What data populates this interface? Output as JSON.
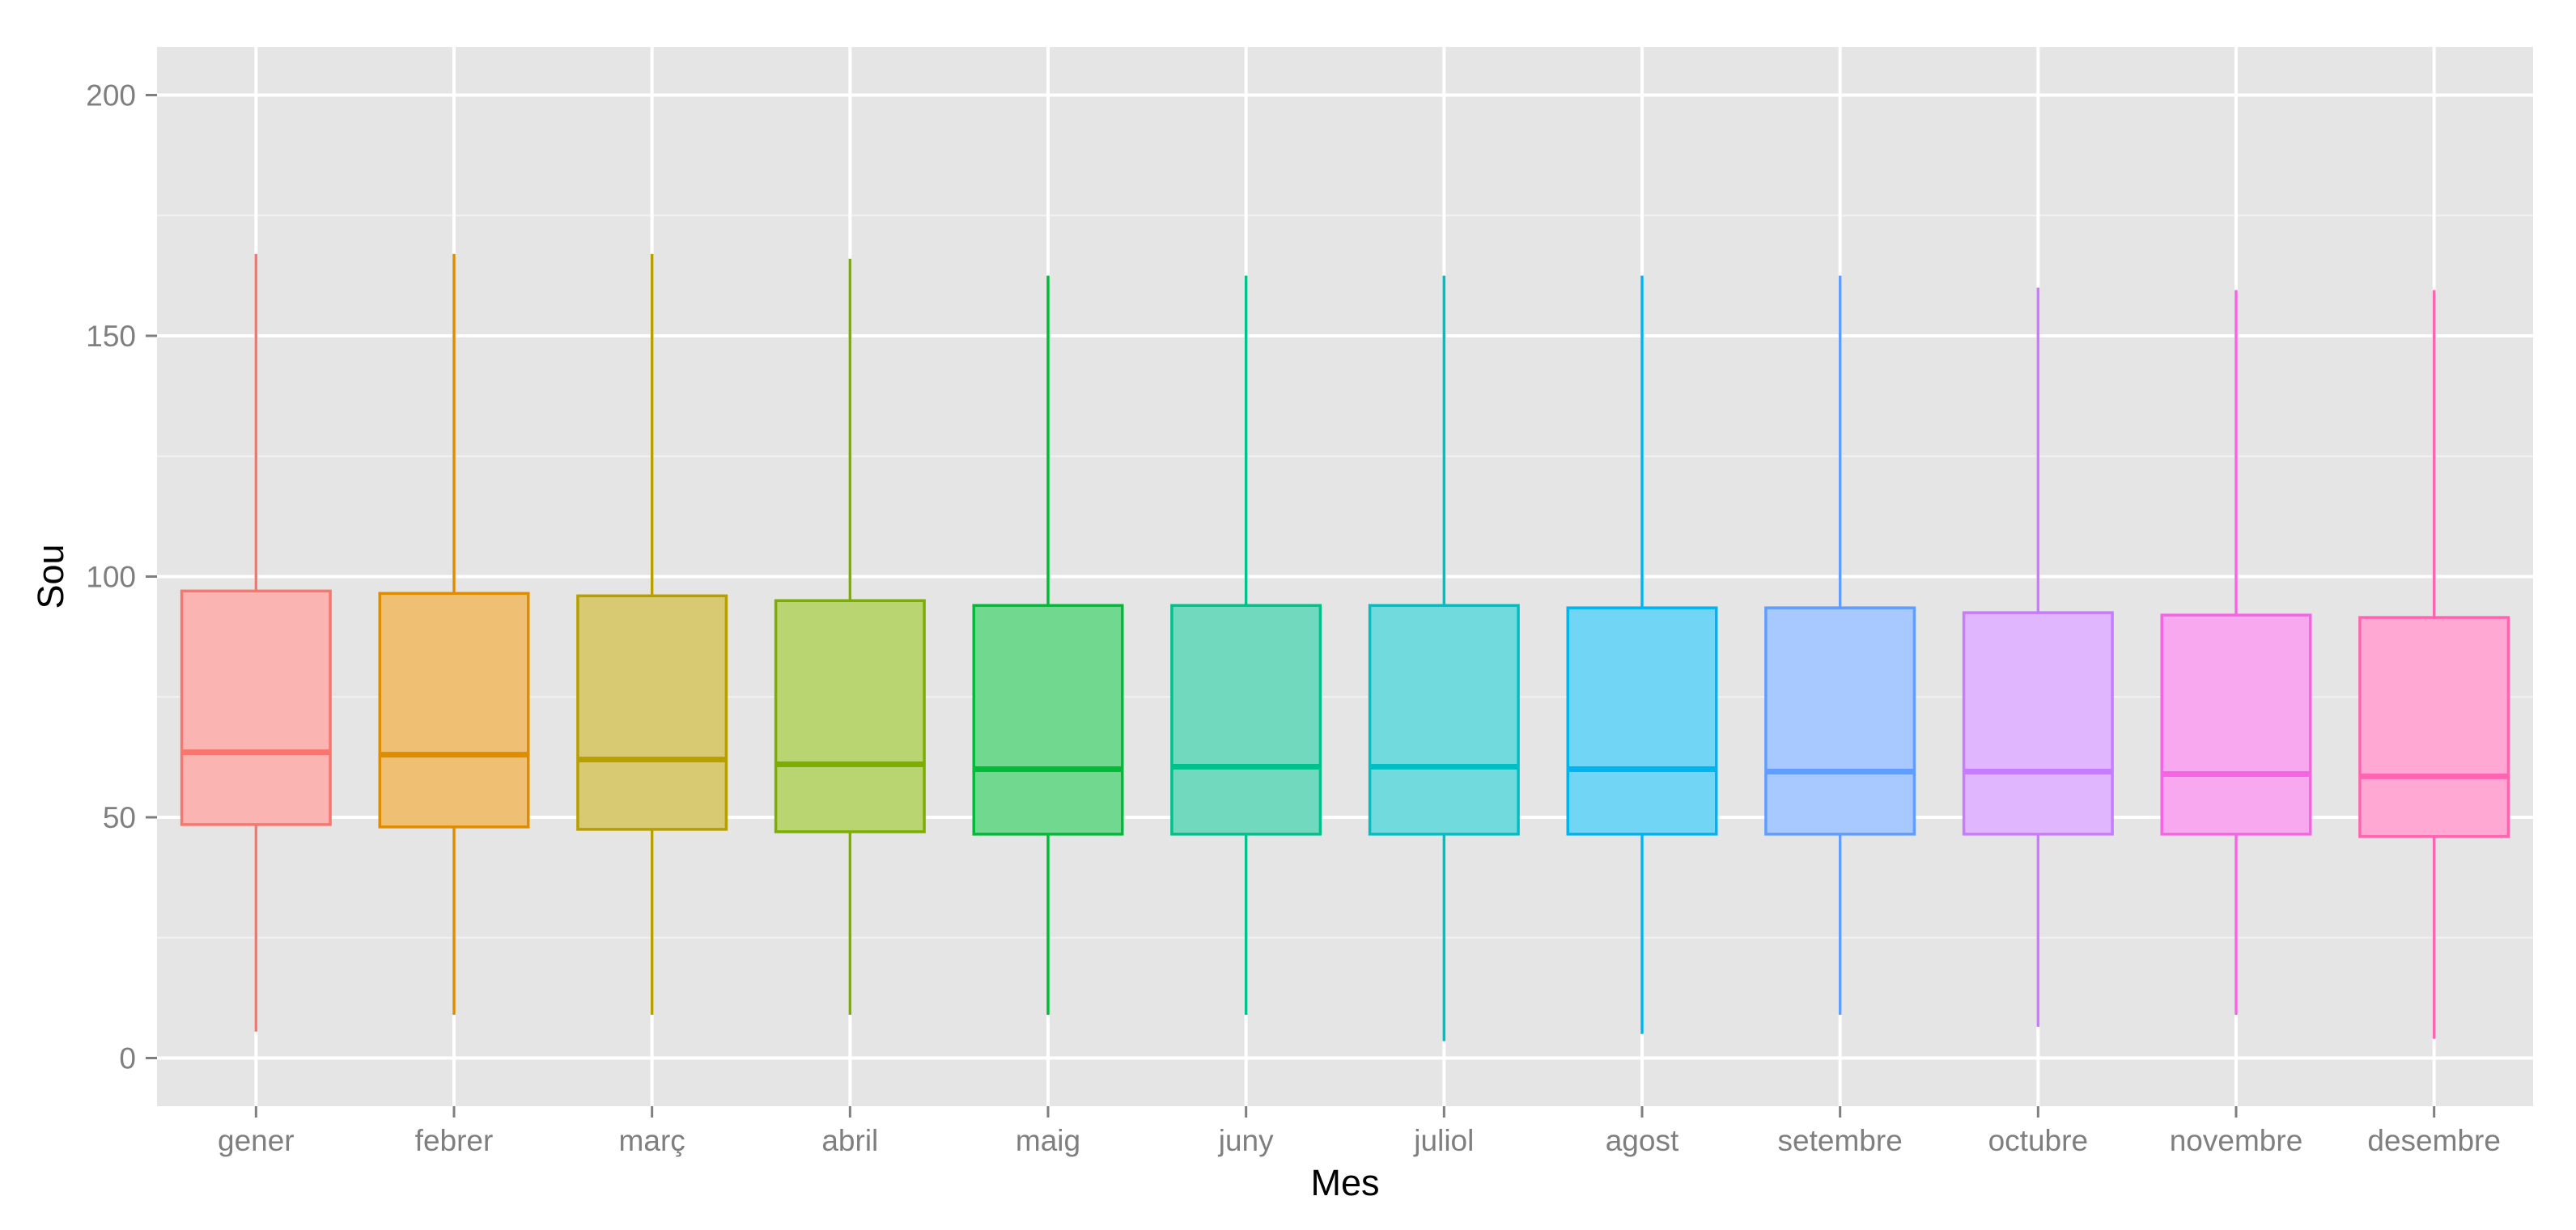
{
  "chart_data": {
    "type": "boxplot",
    "xlabel": "Mes",
    "ylabel": "Sou",
    "ylim": [
      -10,
      210
    ],
    "y_ticks": [
      0,
      50,
      100,
      150,
      200
    ],
    "grid": true,
    "legend": "none",
    "background": "#e5e5e5",
    "categories": [
      "gener",
      "febrer",
      "març",
      "abril",
      "maig",
      "juny",
      "juliol",
      "agost",
      "setembre",
      "octubre",
      "novembre",
      "desembre"
    ],
    "series": [
      {
        "category": "gener",
        "min": 5.5,
        "q1": 48.5,
        "median": 63.5,
        "q3": 97.0,
        "max": 167.0,
        "color": "#F8766D",
        "fill": "#FAB4B1"
      },
      {
        "category": "febrer",
        "min": 9.0,
        "q1": 48.0,
        "median": 63.0,
        "q3": 96.5,
        "max": 167.0,
        "color": "#DE8C00",
        "fill": "#EFC073"
      },
      {
        "category": "març",
        "min": 9.0,
        "q1": 47.5,
        "median": 62.0,
        "q3": 96.0,
        "max": 167.0,
        "color": "#B79F00",
        "fill": "#D8CA72"
      },
      {
        "category": "abril",
        "min": 9.0,
        "q1": 47.0,
        "median": 61.0,
        "q3": 95.0,
        "max": 166.0,
        "color": "#7CAE00",
        "fill": "#B9D572"
      },
      {
        "category": "maig",
        "min": 9.0,
        "q1": 46.5,
        "median": 60.0,
        "q3": 94.0,
        "max": 162.5,
        "color": "#00BA38",
        "fill": "#71D88F"
      },
      {
        "category": "juny",
        "min": 9.0,
        "q1": 46.5,
        "median": 60.5,
        "q3": 94.0,
        "max": 162.5,
        "color": "#00C08B",
        "fill": "#71DABE"
      },
      {
        "category": "juliol",
        "min": 3.5,
        "q1": 46.5,
        "median": 60.5,
        "q3": 94.0,
        "max": 162.5,
        "color": "#00BFC4",
        "fill": "#71DADD"
      },
      {
        "category": "agost",
        "min": 5.0,
        "q1": 46.5,
        "median": 60.0,
        "q3": 93.5,
        "max": 162.5,
        "color": "#00B4F0",
        "fill": "#71D5F5"
      },
      {
        "category": "setembre",
        "min": 9.0,
        "q1": 46.5,
        "median": 59.5,
        "q3": 93.5,
        "max": 162.5,
        "color": "#619CFF",
        "fill": "#A8C9FF"
      },
      {
        "category": "octubre",
        "min": 6.5,
        "q1": 46.5,
        "median": 59.5,
        "q3": 92.5,
        "max": 160.0,
        "color": "#C77CFF",
        "fill": "#E0B7FF"
      },
      {
        "category": "novembre",
        "min": 9.0,
        "q1": 46.5,
        "median": 59.0,
        "q3": 92.0,
        "max": 159.5,
        "color": "#F564E3",
        "fill": "#F8A8EF"
      },
      {
        "category": "desembre",
        "min": 4.0,
        "q1": 46.0,
        "median": 58.5,
        "q3": 91.5,
        "max": 159.5,
        "color": "#FF64B0",
        "fill": "#FFA8D3"
      }
    ]
  }
}
